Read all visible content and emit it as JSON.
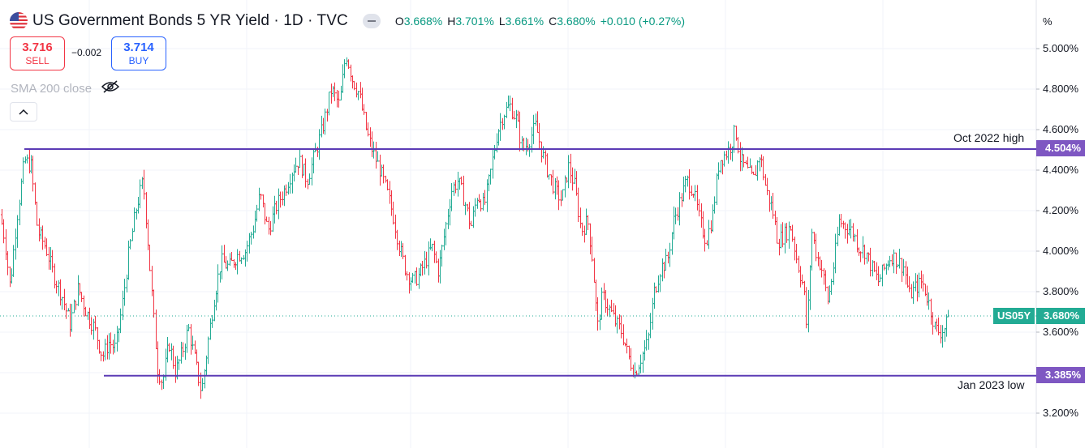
{
  "header": {
    "title": "US Government Bonds 5 YR Yield · 1D · TVC",
    "ohlc": [
      {
        "k": "O",
        "v": "3.668%"
      },
      {
        "k": "H",
        "v": "3.701%"
      },
      {
        "k": "L",
        "v": "3.661%"
      },
      {
        "k": "C",
        "v": "3.680%"
      },
      {
        "k": "",
        "v": "+0.010 (+0.27%)"
      }
    ]
  },
  "trade": {
    "sell_price": "3.716",
    "sell_label": "SELL",
    "spread": "−0.002",
    "buy_price": "3.714",
    "buy_label": "BUY"
  },
  "indicator": {
    "label": "SMA 200 close"
  },
  "axis": {
    "unit_label": "%",
    "ticks": [
      "5.000%",
      "4.800%",
      "4.600%",
      "4.400%",
      "4.200%",
      "4.000%",
      "3.800%",
      "3.600%",
      "3.200%"
    ]
  },
  "current": {
    "symbol": "US05Y",
    "price": "3.680%"
  },
  "colors": {
    "up": "#22ab94",
    "down": "#f23645",
    "level": "#5b3bb5",
    "tag_purple": "#7e57c2"
  },
  "chart_data": {
    "type": "ohlc",
    "ylim": [
      3.15,
      5.05
    ],
    "ytick_values": [
      5.0,
      4.8,
      4.6,
      4.4,
      4.2,
      4.0,
      3.8,
      3.6,
      3.2
    ],
    "ylabel": "",
    "xlabel": "",
    "grid": true,
    "levels": [
      {
        "value": 4.504,
        "label": "4.504%",
        "note": "Oct 2022 high"
      },
      {
        "value": 3.385,
        "label": "3.385%",
        "note": "Jan 2023 low"
      }
    ],
    "last_close": 3.68,
    "close_path": [
      [
        0,
        4.18
      ],
      [
        6,
        4.05
      ],
      [
        12,
        3.82
      ],
      [
        20,
        4.15
      ],
      [
        30,
        4.45
      ],
      [
        38,
        4.42
      ],
      [
        46,
        4.1
      ],
      [
        56,
        4.02
      ],
      [
        66,
        3.88
      ],
      [
        76,
        3.78
      ],
      [
        86,
        3.64
      ],
      [
        96,
        3.82
      ],
      [
        106,
        3.7
      ],
      [
        116,
        3.62
      ],
      [
        126,
        3.48
      ],
      [
        134,
        3.55
      ],
      [
        142,
        3.52
      ],
      [
        150,
        3.72
      ],
      [
        158,
        3.98
      ],
      [
        168,
        4.22
      ],
      [
        176,
        4.35
      ],
      [
        182,
        4.05
      ],
      [
        188,
        3.72
      ],
      [
        194,
        3.42
      ],
      [
        200,
        3.35
      ],
      [
        208,
        3.55
      ],
      [
        216,
        3.4
      ],
      [
        224,
        3.5
      ],
      [
        232,
        3.62
      ],
      [
        240,
        3.46
      ],
      [
        248,
        3.3
      ],
      [
        256,
        3.55
      ],
      [
        264,
        3.78
      ],
      [
        272,
        3.95
      ],
      [
        282,
        3.92
      ],
      [
        292,
        3.98
      ],
      [
        302,
        4.0
      ],
      [
        312,
        4.12
      ],
      [
        320,
        4.28
      ],
      [
        330,
        4.1
      ],
      [
        340,
        4.22
      ],
      [
        350,
        4.3
      ],
      [
        360,
        4.4
      ],
      [
        368,
        4.45
      ],
      [
        378,
        4.35
      ],
      [
        388,
        4.48
      ],
      [
        398,
        4.62
      ],
      [
        408,
        4.8
      ],
      [
        418,
        4.72
      ],
      [
        426,
        4.98
      ],
      [
        434,
        4.85
      ],
      [
        442,
        4.78
      ],
      [
        452,
        4.58
      ],
      [
        460,
        4.48
      ],
      [
        468,
        4.4
      ],
      [
        476,
        4.3
      ],
      [
        484,
        4.18
      ],
      [
        492,
        4.02
      ],
      [
        500,
        3.9
      ],
      [
        508,
        3.85
      ],
      [
        516,
        3.88
      ],
      [
        524,
        3.95
      ],
      [
        532,
        4.02
      ],
      [
        540,
        3.9
      ],
      [
        548,
        4.1
      ],
      [
        556,
        4.3
      ],
      [
        564,
        4.35
      ],
      [
        572,
        4.25
      ],
      [
        580,
        4.12
      ],
      [
        588,
        4.28
      ],
      [
        596,
        4.22
      ],
      [
        604,
        4.38
      ],
      [
        612,
        4.58
      ],
      [
        620,
        4.68
      ],
      [
        628,
        4.72
      ],
      [
        636,
        4.65
      ],
      [
        644,
        4.5
      ],
      [
        652,
        4.55
      ],
      [
        660,
        4.62
      ],
      [
        668,
        4.48
      ],
      [
        676,
        4.38
      ],
      [
        684,
        4.3
      ],
      [
        692,
        4.25
      ],
      [
        700,
        4.42
      ],
      [
        708,
        4.32
      ],
      [
        716,
        4.1
      ],
      [
        724,
        4.15
      ],
      [
        730,
        3.95
      ],
      [
        736,
        3.62
      ],
      [
        742,
        3.78
      ],
      [
        750,
        3.72
      ],
      [
        758,
        3.65
      ],
      [
        766,
        3.6
      ],
      [
        774,
        3.48
      ],
      [
        782,
        3.4
      ],
      [
        790,
        3.48
      ],
      [
        798,
        3.55
      ],
      [
        806,
        3.8
      ],
      [
        814,
        3.92
      ],
      [
        822,
        3.95
      ],
      [
        830,
        4.15
      ],
      [
        838,
        4.25
      ],
      [
        846,
        4.35
      ],
      [
        854,
        4.3
      ],
      [
        862,
        4.15
      ],
      [
        870,
        4.05
      ],
      [
        878,
        4.18
      ],
      [
        886,
        4.45
      ],
      [
        894,
        4.48
      ],
      [
        900,
        4.52
      ],
      [
        906,
        4.6
      ],
      [
        912,
        4.45
      ],
      [
        920,
        4.4
      ],
      [
        928,
        4.35
      ],
      [
        936,
        4.48
      ],
      [
        944,
        4.3
      ],
      [
        952,
        4.2
      ],
      [
        958,
        4.05
      ],
      [
        966,
        4.08
      ],
      [
        974,
        4.12
      ],
      [
        982,
        3.95
      ],
      [
        990,
        3.82
      ],
      [
        994,
        3.6
      ],
      [
        1000,
        4.1
      ],
      [
        1006,
        3.98
      ],
      [
        1012,
        3.92
      ],
      [
        1020,
        3.75
      ],
      [
        1026,
        3.9
      ],
      [
        1034,
        4.15
      ],
      [
        1042,
        4.12
      ],
      [
        1050,
        4.1
      ],
      [
        1058,
        4.02
      ],
      [
        1066,
        4.0
      ],
      [
        1074,
        3.92
      ],
      [
        1082,
        3.85
      ],
      [
        1090,
        3.92
      ],
      [
        1098,
        3.98
      ],
      [
        1106,
        3.95
      ],
      [
        1114,
        3.92
      ],
      [
        1120,
        3.78
      ],
      [
        1128,
        3.82
      ],
      [
        1136,
        3.85
      ],
      [
        1144,
        3.75
      ],
      [
        1152,
        3.62
      ],
      [
        1158,
        3.6
      ],
      [
        1164,
        3.62
      ],
      [
        1170,
        3.68
      ]
    ]
  }
}
